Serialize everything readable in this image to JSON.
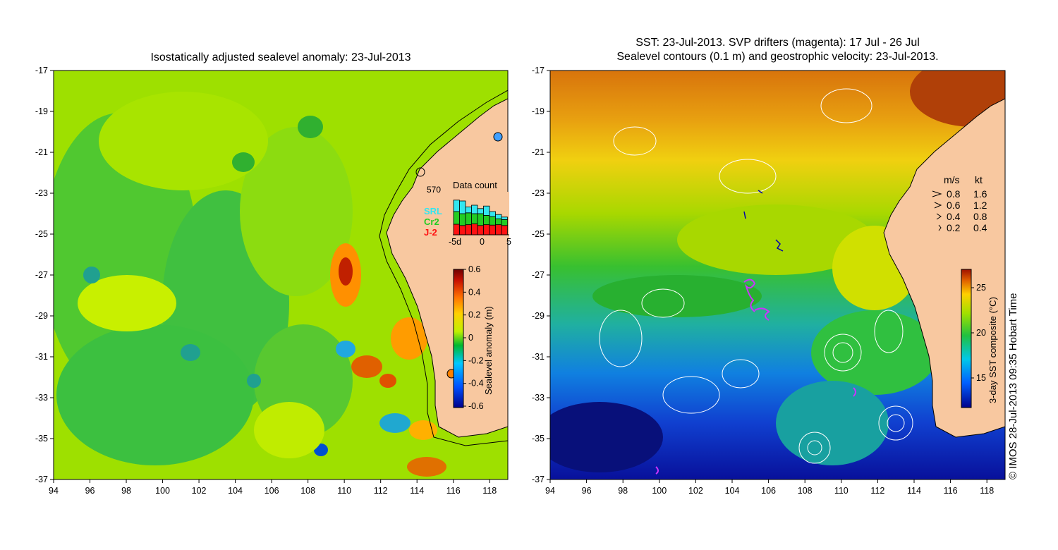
{
  "left_panel": {
    "title": "Isostatically adjusted sealevel anomaly: 23-Jul-2013",
    "colorbar": {
      "label": "Sealevel anomaly (m)",
      "ticks": [
        "0.6",
        "0.4",
        "0.2",
        "0",
        "-0.2",
        "-0.4",
        "-0.6"
      ]
    },
    "data_count": {
      "title": "Data count",
      "max_label": "570",
      "legend": [
        {
          "name": "SRL",
          "color": "#33e6f0"
        },
        {
          "name": "Cr2",
          "color": "#22cc22"
        },
        {
          "name": "J-2",
          "color": "#ff1111"
        }
      ],
      "x_ticks": [
        "-5d",
        "0",
        "5"
      ],
      "bars": [
        {
          "j2": 0.25,
          "cr2": 0.3,
          "srl": 0.27
        },
        {
          "j2": 0.22,
          "cr2": 0.28,
          "srl": 0.3
        },
        {
          "j2": 0.24,
          "cr2": 0.28,
          "srl": 0.14
        },
        {
          "j2": 0.26,
          "cr2": 0.24,
          "srl": 0.2
        },
        {
          "j2": 0.22,
          "cr2": 0.28,
          "srl": 0.12
        },
        {
          "j2": 0.24,
          "cr2": 0.22,
          "srl": 0.22
        },
        {
          "j2": 0.23,
          "cr2": 0.2,
          "srl": 0.12
        },
        {
          "j2": 0.24,
          "cr2": 0.14,
          "srl": 0.1
        },
        {
          "j2": 0.22,
          "cr2": 0.14,
          "srl": 0.06
        }
      ]
    }
  },
  "right_panel": {
    "title_line1": "SST: 23-Jul-2013. SVP drifters (magenta): 17 Jul - 26 Jul",
    "title_line2": "Sealevel contours (0.1 m) and geostrophic velocity: 23-Jul-2013.",
    "colorbar": {
      "label": "3-day SST composite (°C)",
      "ticks": [
        "25",
        "20",
        "15"
      ]
    },
    "velocity_legend": {
      "header_ms": "m/s",
      "header_kt": "kt",
      "rows": [
        {
          "ms": "0.8",
          "kt": "1.6"
        },
        {
          "ms": "0.6",
          "kt": "1.2"
        },
        {
          "ms": "0.4",
          "kt": "0.8"
        },
        {
          "ms": "0.2",
          "kt": "0.4"
        }
      ]
    }
  },
  "axes": {
    "lat_ticks": [
      "-17",
      "-19",
      "-21",
      "-23",
      "-25",
      "-27",
      "-29",
      "-31",
      "-33",
      "-35",
      "-37"
    ],
    "lon_ticks": [
      "94",
      "96",
      "98",
      "100",
      "102",
      "104",
      "106",
      "108",
      "110",
      "112",
      "114",
      "116",
      "118"
    ]
  },
  "copyright": "© IMOS 28-Jul-2013 09:35 Hobart Time",
  "colors": {
    "land": "#f8c8a0",
    "sla_scale": [
      "#00008b",
      "#0050ff",
      "#00c8ff",
      "#00c000",
      "#c0f000",
      "#ffd000",
      "#ff7000",
      "#c81000",
      "#7a0000"
    ],
    "sst_scale": [
      "#00008b",
      "#0060ff",
      "#00c8e8",
      "#20c040",
      "#a0e000",
      "#ffd000",
      "#e06000",
      "#a01000"
    ]
  }
}
